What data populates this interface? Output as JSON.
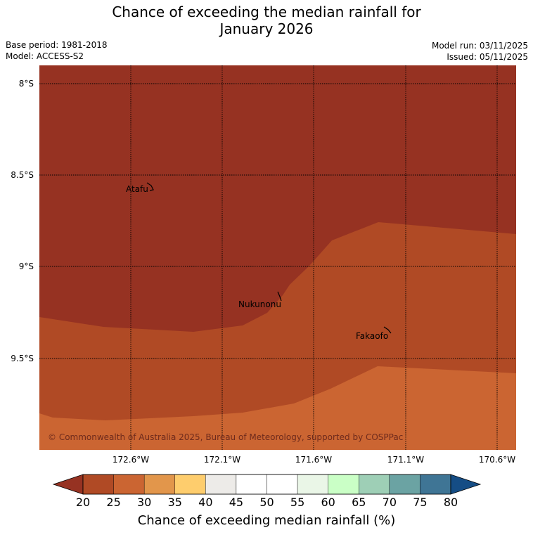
{
  "title": {
    "line1": "Chance of exceeding the median rainfall for",
    "line2": "January 2026"
  },
  "meta": {
    "base_period": "Base period: 1981-2018",
    "model": "Model: ACCESS-S2",
    "model_run": "Model run: 03/11/2025",
    "issued": "Issued: 05/11/2025"
  },
  "map": {
    "lat_labels": [
      "8°S",
      "8.5°S",
      "9°S",
      "9.5°S"
    ],
    "lon_labels": [
      "172.6°W",
      "172.1°W",
      "171.6°W",
      "171.1°W",
      "170.6°W"
    ],
    "places": [
      "Atafu",
      "Nukunonu",
      "Fakaofo"
    ],
    "copyright": "© Commonwealth of Australia 2025, Bureau of Meteorology, supported by COSPPac",
    "regions": [
      {
        "category": "below 20%",
        "color": "#963222"
      },
      {
        "category": "20-25%",
        "color": "#b04a25"
      },
      {
        "category": "25-30%",
        "color": "#cb6532"
      }
    ]
  },
  "colorbar": {
    "ticks": [
      "20",
      "25",
      "30",
      "35",
      "40",
      "45",
      "50",
      "55",
      "60",
      "65",
      "70",
      "75",
      "80"
    ],
    "low_color": "#963222",
    "high_color": "#154d85",
    "colors": [
      "#b04a25",
      "#cb6532",
      "#e2964b",
      "#fecd6d",
      "#edebe8",
      "#ffffff",
      "#ffffff",
      "#eaf6e7",
      "#caffc6",
      "#9ecfb6",
      "#6ba3a3",
      "#3f7595"
    ],
    "label": "Chance of exceeding median rainfall (%)"
  }
}
